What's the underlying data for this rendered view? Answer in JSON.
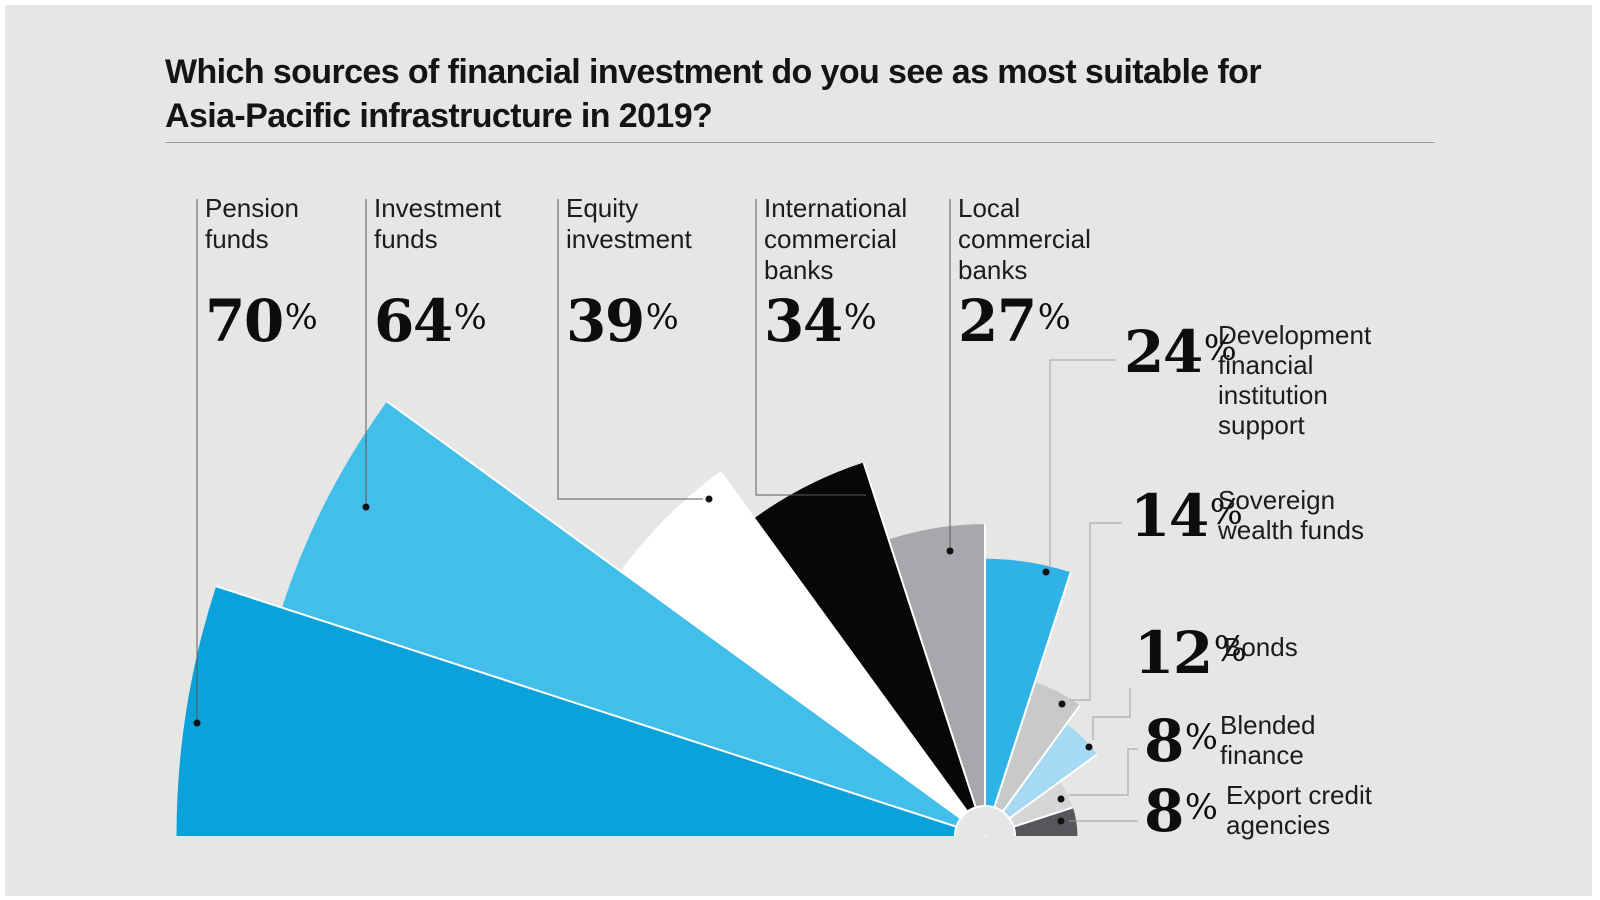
{
  "page": {
    "background_color": "#ffffff",
    "panel_color": "#E6E6E4"
  },
  "title": {
    "text": "Which sources of financial investment do you see as most suitable for Asia-Pacific infrastructure in 2019?",
    "lines": [
      "Which sources of financial investment do you see as most suitable for",
      "Asia-Pacific infrastructure in 2019?"
    ]
  },
  "chart_data": {
    "type": "fan-rose",
    "description": "Half-circle fan of 10 equal-angle wedges; wedge radius is proportional to percentage value",
    "unit": "%",
    "angle_span_deg": 180,
    "wedge_angle_deg": 18,
    "series": [
      {
        "label": "Pension funds",
        "value": 70,
        "color": "#09A2DB",
        "label_position": "top"
      },
      {
        "label": "Investment funds",
        "value": 64,
        "color": "#41BEE9",
        "label_position": "top"
      },
      {
        "label": "Equity investment",
        "value": 39,
        "color": "#FFFFFF",
        "label_position": "top"
      },
      {
        "label": "International commercial banks",
        "value": 34,
        "color": "#070707",
        "label_position": "top"
      },
      {
        "label": "Local commercial banks",
        "value": 27,
        "color": "#A6A8AB",
        "label_position": "top"
      },
      {
        "label": "Development financial institution support",
        "value": 24,
        "color": "#2FB3E6",
        "label_position": "right"
      },
      {
        "label": "Sovereign wealth funds",
        "value": 14,
        "color": "#C8CACA",
        "label_position": "right"
      },
      {
        "label": "Bonds",
        "value": 12,
        "color": "#A6D9F2",
        "label_position": "right"
      },
      {
        "label": "Blended finance",
        "value": 8,
        "color": "#D4D6D7",
        "label_position": "right"
      },
      {
        "label": "Export credit agencies",
        "value": 8,
        "color": "#55575A",
        "label_position": "right"
      }
    ]
  }
}
